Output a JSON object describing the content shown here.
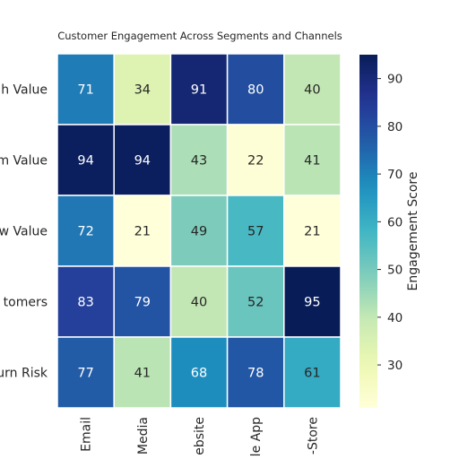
{
  "chart_data": {
    "type": "heatmap",
    "title": "Customer Engagement Across Segments and Channels",
    "xlabel": "",
    "ylabel": "",
    "rows": [
      "h Value",
      "m Value",
      "w Value",
      "tomers",
      "urn Risk"
    ],
    "columns": [
      "Email",
      "Media",
      "ebsite",
      "le App",
      "-Store"
    ],
    "values": [
      [
        71,
        34,
        91,
        80,
        40
      ],
      [
        94,
        94,
        43,
        22,
        41
      ],
      [
        72,
        21,
        49,
        57,
        21
      ],
      [
        83,
        79,
        40,
        52,
        95
      ],
      [
        77,
        41,
        68,
        78,
        61
      ]
    ],
    "colorbar": {
      "label": "Engagement Score",
      "range": [
        21,
        95
      ],
      "ticks": [
        30,
        40,
        50,
        60,
        70,
        80,
        90
      ],
      "colormap": "YlGnBu"
    },
    "cell_labels": [
      "71",
      "34",
      "91",
      "80",
      "40",
      "94",
      "94",
      "43",
      "22",
      "41",
      "72",
      "21",
      "49",
      "57",
      "21",
      "83",
      "79",
      "40",
      "52",
      "95",
      "77",
      "41",
      "68",
      "78",
      "61"
    ],
    "colorbar_tick_labels": [
      "30",
      "40",
      "50",
      "60",
      "70",
      "80",
      "90"
    ]
  }
}
